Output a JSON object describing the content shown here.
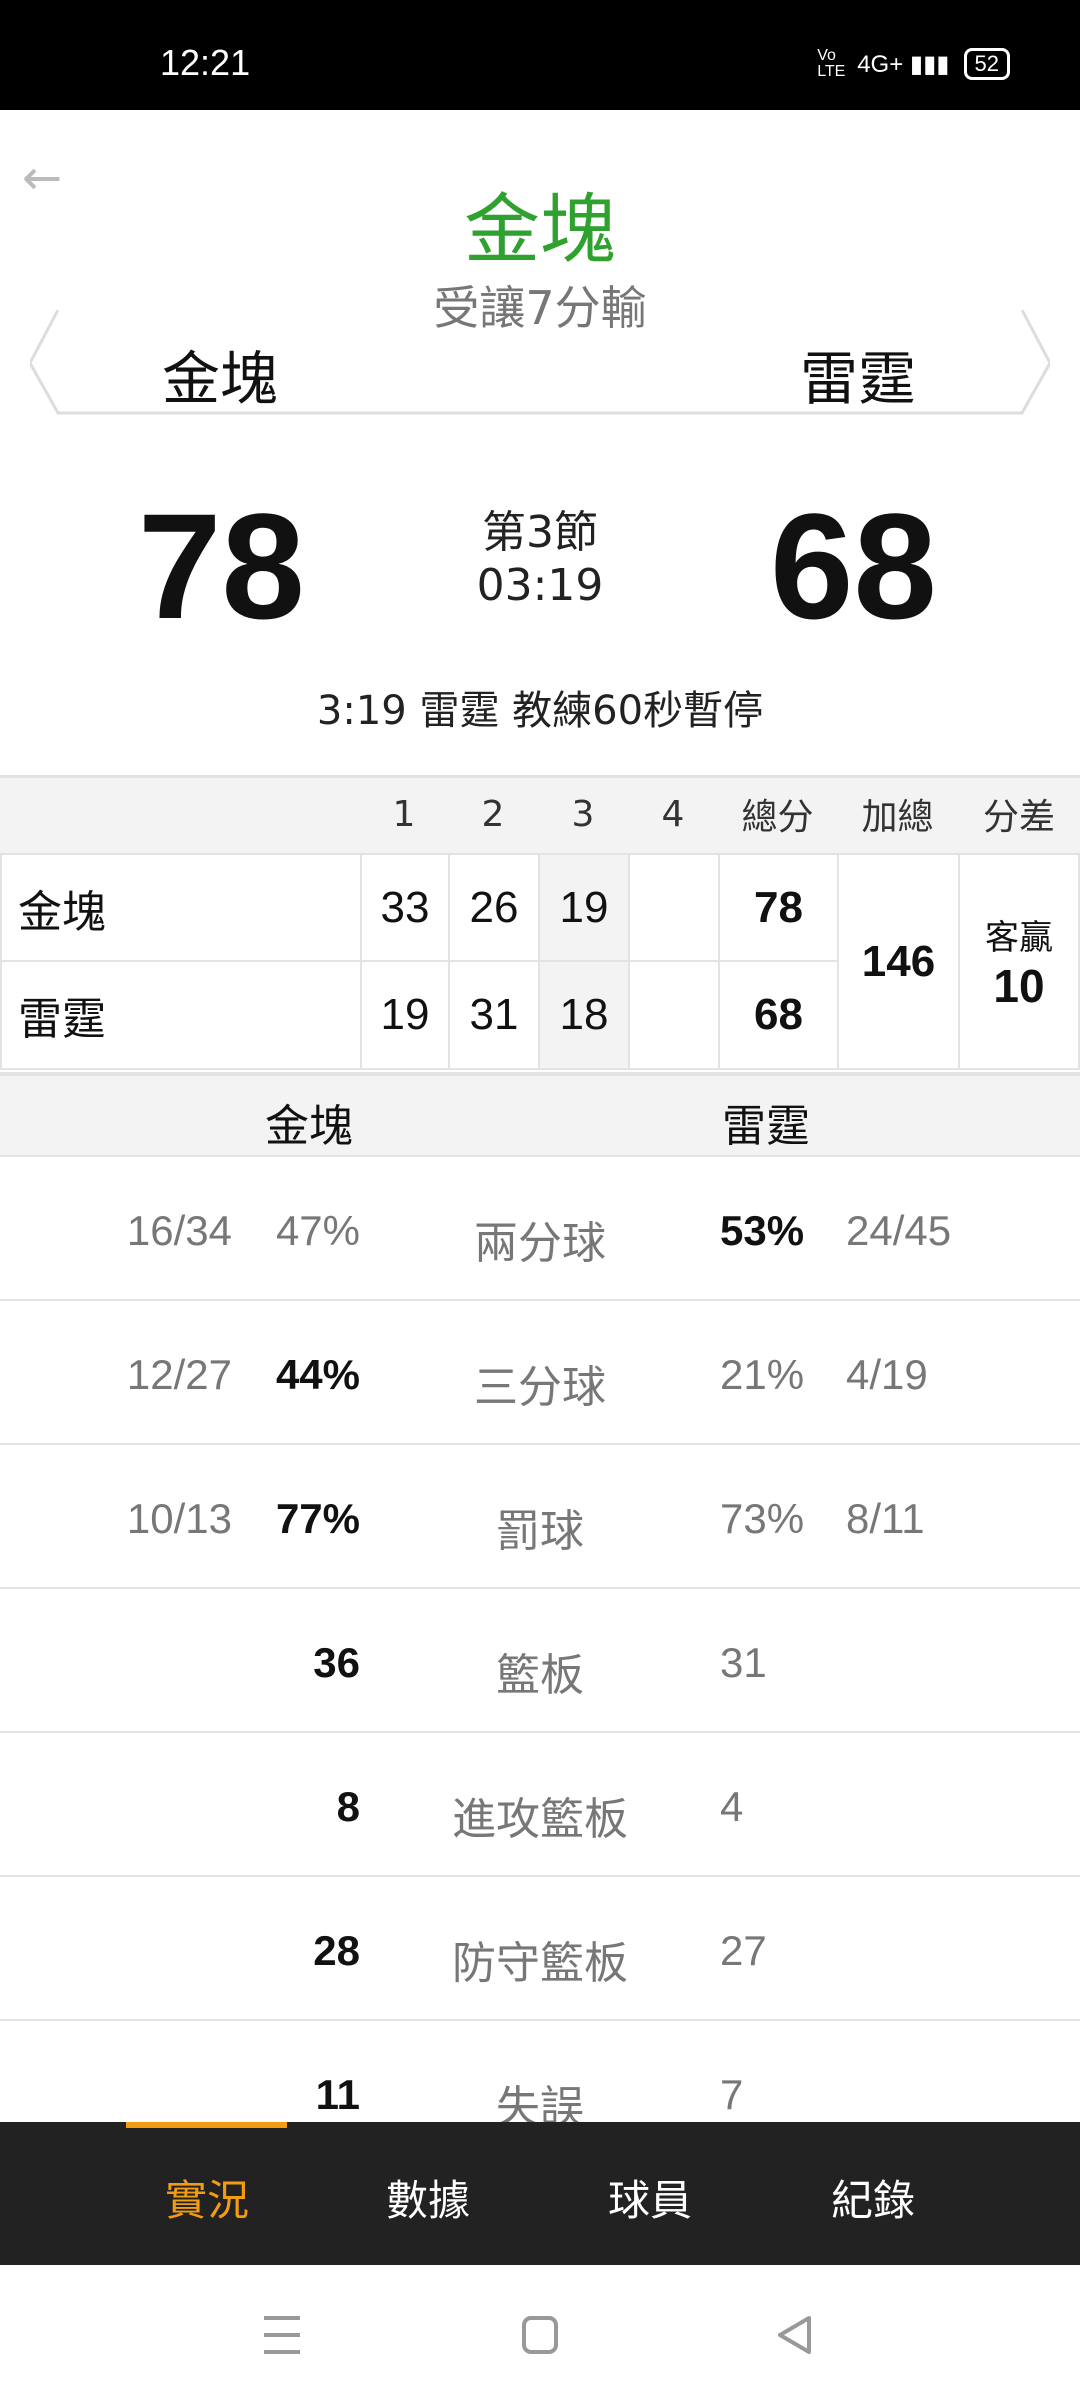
{
  "status_bar": {
    "time": "12:21",
    "network": "4G+",
    "volte": "Vo LTE",
    "battery": "52"
  },
  "header": {
    "title": "金塊",
    "subtitle": "受讓7分輸",
    "home_team": "金塊",
    "away_team": "雷霆",
    "title_color": "#2ea12e"
  },
  "score": {
    "home": "78",
    "away": "68",
    "period": "第3節",
    "clock": "03:19",
    "event": "3:19 雷霆  教練60秒暫停"
  },
  "box": {
    "headers": [
      "1",
      "2",
      "3",
      "4",
      "總分",
      "加總",
      "分差"
    ],
    "rows": [
      {
        "team": "金塊",
        "q": [
          "33",
          "26",
          "19",
          ""
        ],
        "total": "78"
      },
      {
        "team": "雷霆",
        "q": [
          "19",
          "31",
          "18",
          ""
        ],
        "total": "68"
      }
    ],
    "sum": "146",
    "diff_label": "客贏",
    "diff": "10"
  },
  "stats": {
    "home_team": "金塊",
    "away_team": "雷霆",
    "rows": [
      {
        "label": "兩分球",
        "home_frac": "16/34",
        "home": "47%",
        "away": "53%",
        "away_frac": "24/45",
        "winner": "away"
      },
      {
        "label": "三分球",
        "home_frac": "12/27",
        "home": "44%",
        "away": "21%",
        "away_frac": "4/19",
        "winner": "home"
      },
      {
        "label": "罰球",
        "home_frac": "10/13",
        "home": "77%",
        "away": "73%",
        "away_frac": "8/11",
        "winner": "home"
      },
      {
        "label": "籃板",
        "home_frac": "",
        "home": "36",
        "away": "31",
        "away_frac": "",
        "winner": "home"
      },
      {
        "label": "進攻籃板",
        "home_frac": "",
        "home": "8",
        "away": "4",
        "away_frac": "",
        "winner": "home"
      },
      {
        "label": "防守籃板",
        "home_frac": "",
        "home": "28",
        "away": "27",
        "away_frac": "",
        "winner": "home"
      },
      {
        "label": "失誤",
        "home_frac": "",
        "home": "11",
        "away": "7",
        "away_frac": "",
        "winner": "home"
      }
    ]
  },
  "nav": {
    "tabs": [
      "實況",
      "數據",
      "球員",
      "紀錄"
    ],
    "active": 0,
    "accent": "#f39c12"
  }
}
